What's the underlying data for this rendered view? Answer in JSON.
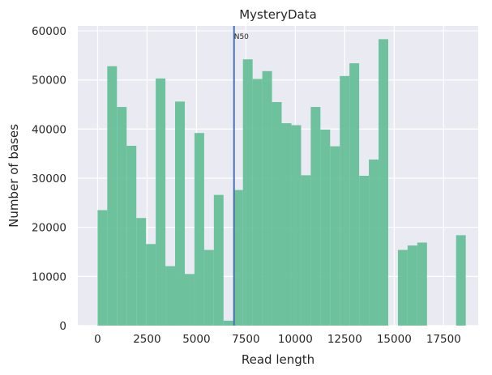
{
  "chart_data": {
    "type": "bar",
    "title": "MysteryData",
    "xlabel": "Read length",
    "ylabel": "Number of bases",
    "xlim": [
      -1000,
      19250
    ],
    "ylim": [
      0,
      61000
    ],
    "xticks": [
      0,
      2500,
      5000,
      7500,
      10000,
      12500,
      15000,
      17500
    ],
    "yticks": [
      0,
      10000,
      20000,
      30000,
      40000,
      50000,
      60000
    ],
    "bin_width": 490,
    "bin_starts": [
      0,
      490,
      980,
      1470,
      1960,
      2450,
      2940,
      3430,
      3920,
      4410,
      4900,
      5390,
      5880,
      6370,
      6860,
      7350,
      7840,
      8330,
      8820,
      9310,
      9800,
      10290,
      10780,
      11270,
      11760,
      12250,
      12740,
      13230,
      13720,
      14210,
      15190,
      15680,
      16170,
      17640,
      18130
    ],
    "values": [
      23500,
      52800,
      44500,
      36600,
      21900,
      16600,
      50300,
      12100,
      45600,
      10500,
      39200,
      15400,
      26600,
      1000,
      27600,
      54200,
      50200,
      51800,
      45500,
      41200,
      40800,
      30600,
      44500,
      39900,
      36500,
      50800,
      53400,
      30500,
      33800,
      58300,
      15400,
      16300,
      16900,
      0,
      18400
    ],
    "grid": true,
    "annotations": [
      {
        "type": "vline",
        "x": 6900,
        "label": "N50",
        "color": "#4c72b0"
      }
    ],
    "colors": {
      "bars": "#66bf98",
      "background": "#eaeaf2",
      "grid": "#ffffff",
      "vline": "#4c72b0"
    }
  }
}
